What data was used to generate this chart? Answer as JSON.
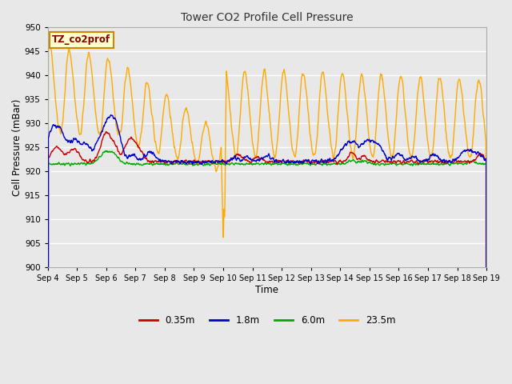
{
  "title": "Tower CO2 Profile Cell Pressure",
  "xlabel": "Time",
  "ylabel": "Cell Pressure (mBar)",
  "ylim": [
    900,
    950
  ],
  "yticks": [
    900,
    905,
    910,
    915,
    920,
    925,
    930,
    935,
    940,
    945,
    950
  ],
  "bg_color": "#e8e8e8",
  "grid_color": "white",
  "annotation_label": "TZ_co2prof",
  "annotation_bg": "#ffffcc",
  "annotation_border": "#cc8800",
  "annotation_text_color": "#8B0000",
  "legend_colors": {
    "0.35m": "#cc0000",
    "1.8m": "#0000cc",
    "6.0m": "#00aa00",
    "23.5m": "#ffaa00"
  },
  "dip_day": 6,
  "dip_value": 905,
  "base": 922.0,
  "orange_amplitude": 11,
  "orange_min": 922,
  "orange_cycles_per_day": 1.5
}
